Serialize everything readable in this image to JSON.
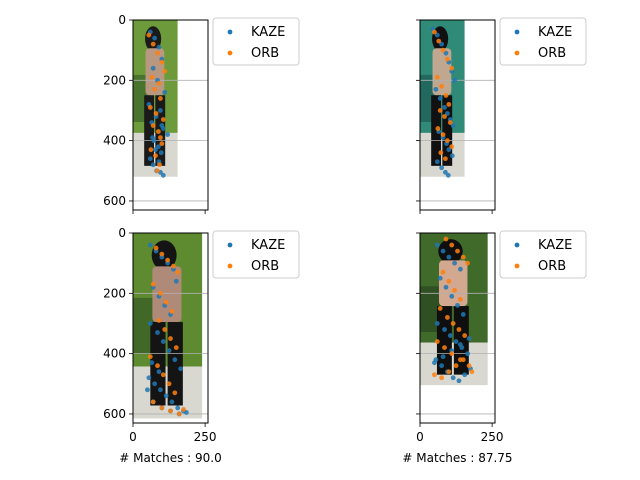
{
  "chart_data": [
    {
      "type": "scatter",
      "image_colors": [
        "#6d9a3a",
        "#3e6a2a",
        "#1a1a1a",
        "#b89880"
      ],
      "series": [
        {
          "name": "KAZE",
          "color": "#1f77b4",
          "x": [
            60,
            75,
            90,
            100,
            70,
            85,
            110,
            55,
            95,
            80,
            65,
            105,
            120,
            72,
            88,
            98,
            60,
            70,
            82,
            95,
            105,
            90,
            78,
            68,
            100
          ],
          "y": [
            40,
            60,
            90,
            130,
            160,
            200,
            240,
            280,
            300,
            320,
            340,
            360,
            380,
            400,
            420,
            440,
            460,
            480,
            500,
            505,
            515,
            470,
            430,
            390,
            350
          ]
        },
        {
          "name": "ORB",
          "color": "#ff7f0e",
          "x": [
            55,
            70,
            85,
            100,
            110,
            65,
            90,
            75,
            95,
            60,
            80,
            105,
            70,
            88,
            95,
            100,
            62,
            78,
            92,
            84
          ],
          "y": [
            50,
            80,
            110,
            140,
            170,
            190,
            210,
            230,
            260,
            290,
            310,
            330,
            350,
            370,
            390,
            410,
            430,
            450,
            480,
            500
          ]
        }
      ],
      "xticks": [
        0,
        250
      ],
      "yticks": [
        0,
        200,
        400,
        600
      ],
      "xlim": [
        0,
        260
      ],
      "ylim": [
        630,
        0
      ],
      "image_width": 155,
      "image_height": 520,
      "grid": true,
      "legend": "outside-right",
      "show_xticklabels": false,
      "show_yticklabels": true,
      "xlabel": ""
    },
    {
      "type": "scatter",
      "image_colors": [
        "#2f8a78",
        "#1f5f58",
        "#111111",
        "#c0a890"
      ],
      "series": [
        {
          "name": "KAZE",
          "color": "#1f77b4",
          "x": [
            45,
            60,
            75,
            90,
            100,
            110,
            120,
            55,
            70,
            85,
            95,
            105,
            115,
            65,
            80,
            92,
            100,
            112,
            60,
            75,
            88,
            98
          ],
          "y": [
            30,
            50,
            80,
            110,
            140,
            170,
            200,
            230,
            260,
            290,
            310,
            330,
            350,
            370,
            390,
            410,
            430,
            450,
            470,
            490,
            505,
            515
          ]
        },
        {
          "name": "ORB",
          "color": "#ff7f0e",
          "x": [
            50,
            65,
            80,
            95,
            110,
            60,
            75,
            90,
            100,
            70,
            85,
            105,
            62,
            80,
            95,
            110,
            72,
            88
          ],
          "y": [
            40,
            70,
            100,
            130,
            160,
            190,
            220,
            250,
            280,
            300,
            320,
            340,
            360,
            380,
            400,
            420,
            440,
            460
          ]
        }
      ],
      "xticks": [
        0,
        250
      ],
      "yticks": [
        0,
        200,
        400,
        600
      ],
      "xlim": [
        0,
        260
      ],
      "ylim": [
        630,
        0
      ],
      "image_width": 155,
      "image_height": 520,
      "grid": true,
      "legend": "outside-right",
      "show_xticklabels": false,
      "show_yticklabels": false,
      "xlabel": ""
    },
    {
      "type": "scatter",
      "image_colors": [
        "#5e8a30",
        "#3a5f25",
        "#141414",
        "#b08a78"
      ],
      "series": [
        {
          "name": "KAZE",
          "color": "#1f77b4",
          "x": [
            60,
            80,
            100,
            120,
            140,
            150,
            70,
            90,
            110,
            130,
            60,
            85,
            105,
            125,
            145,
            165,
            55,
            75,
            95,
            115,
            135,
            155,
            175,
            50,
            70,
            100,
            130,
            160,
            185,
            65,
            90
          ],
          "y": [
            40,
            60,
            80,
            100,
            120,
            160,
            180,
            210,
            240,
            270,
            300,
            330,
            360,
            390,
            420,
            450,
            480,
            500,
            520,
            540,
            560,
            580,
            590,
            520,
            560,
            580,
            590,
            600,
            595,
            430,
            460
          ]
        },
        {
          "name": "ORB",
          "color": "#ff7f0e",
          "x": [
            80,
            100,
            120,
            140,
            155,
            70,
            95,
            115,
            135,
            90,
            110,
            130,
            150,
            60,
            85,
            105,
            125,
            145,
            70,
            100,
            130,
            160,
            175
          ],
          "y": [
            50,
            70,
            90,
            110,
            130,
            170,
            200,
            230,
            260,
            290,
            320,
            350,
            380,
            410,
            440,
            470,
            500,
            530,
            560,
            580,
            590,
            600,
            585
          ]
        }
      ],
      "xticks": [
        0,
        250
      ],
      "yticks": [
        0,
        200,
        400,
        600
      ],
      "xlim": [
        0,
        260
      ],
      "ylim": [
        630,
        0
      ],
      "image_width": 240,
      "image_height": 615,
      "grid": true,
      "legend": "outside-right",
      "show_xticklabels": true,
      "show_yticklabels": true,
      "xlabel": "# Matches : 90.0"
    },
    {
      "type": "scatter",
      "image_colors": [
        "#3f6a2a",
        "#2a4a20",
        "#0f0f0f",
        "#d2a890"
      ],
      "series": [
        {
          "name": "KAZE",
          "color": "#1f77b4",
          "x": [
            60,
            80,
            100,
            120,
            140,
            70,
            90,
            110,
            130,
            150,
            60,
            85,
            105,
            125,
            145,
            165,
            55,
            75,
            95,
            115,
            135,
            155,
            175,
            50,
            80,
            110,
            140,
            170
          ],
          "y": [
            40,
            60,
            80,
            100,
            120,
            150,
            180,
            210,
            240,
            270,
            300,
            320,
            340,
            360,
            380,
            400,
            420,
            440,
            460,
            480,
            490,
            470,
            450,
            430,
            410,
            390,
            370,
            350
          ]
        },
        {
          "name": "ORB",
          "color": "#ff7f0e",
          "x": [
            90,
            110,
            130,
            150,
            165,
            80,
            100,
            120,
            140,
            70,
            95,
            115,
            135,
            155,
            60,
            85,
            110,
            140,
            170,
            180,
            50,
            75,
            100,
            125,
            150
          ],
          "y": [
            20,
            40,
            60,
            80,
            100,
            130,
            160,
            190,
            220,
            250,
            280,
            300,
            320,
            340,
            360,
            380,
            400,
            420,
            440,
            460,
            470,
            480,
            460,
            440,
            420
          ]
        }
      ],
      "xticks": [
        0,
        250
      ],
      "yticks": [
        0,
        200,
        400,
        600
      ],
      "xlim": [
        0,
        260
      ],
      "ylim": [
        630,
        0
      ],
      "image_width": 235,
      "image_height": 505,
      "grid": true,
      "legend": "outside-right",
      "show_xticklabels": true,
      "show_yticklabels": false,
      "xlabel": "# Matches : 87.75"
    }
  ]
}
